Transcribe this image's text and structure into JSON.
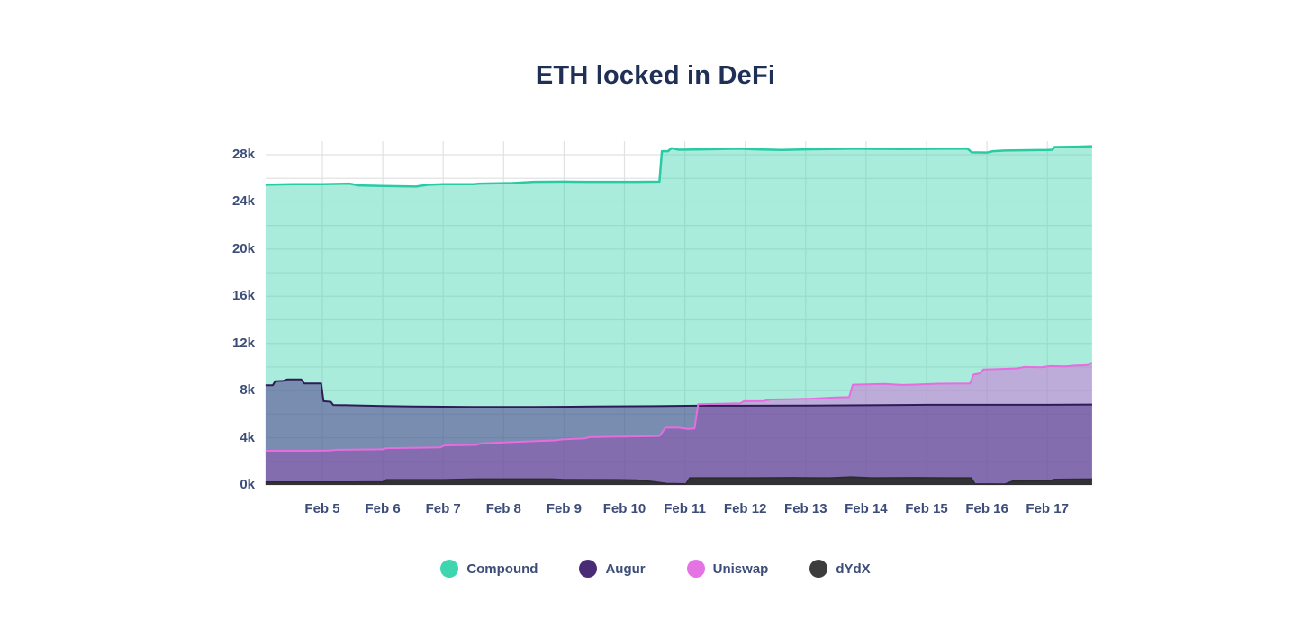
{
  "title": "ETH locked in DeFi",
  "colors": {
    "background": "#ffffff",
    "grid": "#e2e2e2",
    "title_text": "#1f2f55",
    "tick_text": "#3c4d79",
    "legend_text": "#3c4d79"
  },
  "chart_data": {
    "type": "area",
    "stacking": "overlap",
    "title": "ETH locked in DeFi",
    "xlabel": "",
    "ylabel": "",
    "y_unit": "thousands of ETH (k)",
    "x_unit": "day of February (t=5 means Feb 5)",
    "xlim": [
      4.06,
      17.74
    ],
    "ylim": [
      0,
      29.2
    ],
    "grid": true,
    "legend_position": "bottom",
    "yticks": [
      {
        "v": 0,
        "label": "0k"
      },
      {
        "v": 4,
        "label": "4k"
      },
      {
        "v": 8,
        "label": "8k"
      },
      {
        "v": 12,
        "label": "12k"
      },
      {
        "v": 16,
        "label": "16k"
      },
      {
        "v": 20,
        "label": "20k"
      },
      {
        "v": 24,
        "label": "24k"
      },
      {
        "v": 28,
        "label": "28k"
      }
    ],
    "grid_step_y": 2,
    "xticks": [
      {
        "t": 5,
        "label": "Feb 5"
      },
      {
        "t": 6,
        "label": "Feb 6"
      },
      {
        "t": 7,
        "label": "Feb 7"
      },
      {
        "t": 8,
        "label": "Feb 8"
      },
      {
        "t": 9,
        "label": "Feb 9"
      },
      {
        "t": 10,
        "label": "Feb 10"
      },
      {
        "t": 11,
        "label": "Feb 11"
      },
      {
        "t": 12,
        "label": "Feb 12"
      },
      {
        "t": 13,
        "label": "Feb 13"
      },
      {
        "t": 14,
        "label": "Feb 14"
      },
      {
        "t": 15,
        "label": "Feb 15"
      },
      {
        "t": 16,
        "label": "Feb 16"
      },
      {
        "t": 17,
        "label": "Feb 17"
      }
    ],
    "series": [
      {
        "name": "Compound",
        "legend_color": "#3dd6ae",
        "line_color": "#29cba5",
        "line_width": 2.5,
        "fill_color": "rgba(64,213,176,0.45)",
        "points": [
          [
            4.06,
            25.45
          ],
          [
            4.5,
            25.5
          ],
          [
            5.0,
            25.5
          ],
          [
            5.45,
            25.55
          ],
          [
            5.6,
            25.4
          ],
          [
            6.0,
            25.35
          ],
          [
            6.55,
            25.3
          ],
          [
            6.75,
            25.45
          ],
          [
            7.0,
            25.5
          ],
          [
            7.5,
            25.5
          ],
          [
            7.6,
            25.55
          ],
          [
            8.15,
            25.6
          ],
          [
            8.5,
            25.7
          ],
          [
            9.0,
            25.72
          ],
          [
            9.4,
            25.7
          ],
          [
            10.2,
            25.7
          ],
          [
            10.58,
            25.72
          ],
          [
            10.62,
            28.3
          ],
          [
            10.72,
            28.3
          ],
          [
            10.78,
            28.55
          ],
          [
            10.9,
            28.42
          ],
          [
            11.3,
            28.45
          ],
          [
            11.9,
            28.5
          ],
          [
            12.2,
            28.45
          ],
          [
            12.6,
            28.4
          ],
          [
            13.0,
            28.45
          ],
          [
            13.8,
            28.5
          ],
          [
            14.6,
            28.48
          ],
          [
            15.3,
            28.5
          ],
          [
            15.68,
            28.5
          ],
          [
            15.75,
            28.2
          ],
          [
            16.0,
            28.18
          ],
          [
            16.1,
            28.3
          ],
          [
            16.3,
            28.35
          ],
          [
            17.0,
            28.4
          ],
          [
            17.08,
            28.42
          ],
          [
            17.12,
            28.65
          ],
          [
            17.5,
            28.68
          ],
          [
            17.74,
            28.72
          ]
        ]
      },
      {
        "name": "Uniswap",
        "legend_color": "#e473e4",
        "line_color": "#e76ce0",
        "line_width": 2,
        "fill_color": "rgba(212,95,214,0.45)",
        "points": [
          [
            4.06,
            2.9
          ],
          [
            4.8,
            2.9
          ],
          [
            5.1,
            2.92
          ],
          [
            5.25,
            2.98
          ],
          [
            6.0,
            3.02
          ],
          [
            6.06,
            3.12
          ],
          [
            6.5,
            3.15
          ],
          [
            6.95,
            3.18
          ],
          [
            7.02,
            3.35
          ],
          [
            7.55,
            3.4
          ],
          [
            7.62,
            3.52
          ],
          [
            8.0,
            3.6
          ],
          [
            8.35,
            3.68
          ],
          [
            8.85,
            3.78
          ],
          [
            8.95,
            3.85
          ],
          [
            9.35,
            3.95
          ],
          [
            9.42,
            4.05
          ],
          [
            9.9,
            4.1
          ],
          [
            10.3,
            4.12
          ],
          [
            10.58,
            4.15
          ],
          [
            10.68,
            4.85
          ],
          [
            10.9,
            4.85
          ],
          [
            11.05,
            4.75
          ],
          [
            11.16,
            4.78
          ],
          [
            11.22,
            6.85
          ],
          [
            11.6,
            6.88
          ],
          [
            11.92,
            6.92
          ],
          [
            11.98,
            7.1
          ],
          [
            12.3,
            7.12
          ],
          [
            12.42,
            7.25
          ],
          [
            12.8,
            7.28
          ],
          [
            13.1,
            7.32
          ],
          [
            13.5,
            7.42
          ],
          [
            13.72,
            7.45
          ],
          [
            13.78,
            8.5
          ],
          [
            14.0,
            8.52
          ],
          [
            14.3,
            8.56
          ],
          [
            14.6,
            8.48
          ],
          [
            14.9,
            8.52
          ],
          [
            15.2,
            8.58
          ],
          [
            15.72,
            8.6
          ],
          [
            15.78,
            9.35
          ],
          [
            15.88,
            9.45
          ],
          [
            15.94,
            9.78
          ],
          [
            16.2,
            9.82
          ],
          [
            16.5,
            9.88
          ],
          [
            16.62,
            10.0
          ],
          [
            16.9,
            9.98
          ],
          [
            17.05,
            10.08
          ],
          [
            17.3,
            10.05
          ],
          [
            17.45,
            10.12
          ],
          [
            17.6,
            10.15
          ],
          [
            17.68,
            10.18
          ],
          [
            17.74,
            10.38
          ]
        ]
      },
      {
        "name": "Augur",
        "legend_color": "#4a2b76",
        "line_color": "#2e1c55",
        "line_width": 2,
        "fill_color": "rgba(74,46,133,0.50)",
        "points": [
          [
            4.06,
            8.45
          ],
          [
            4.18,
            8.45
          ],
          [
            4.22,
            8.8
          ],
          [
            4.35,
            8.82
          ],
          [
            4.42,
            8.95
          ],
          [
            4.65,
            8.95
          ],
          [
            4.7,
            8.6
          ],
          [
            4.98,
            8.6
          ],
          [
            5.02,
            7.1
          ],
          [
            5.14,
            7.05
          ],
          [
            5.18,
            6.78
          ],
          [
            5.5,
            6.75
          ],
          [
            6.0,
            6.7
          ],
          [
            6.5,
            6.65
          ],
          [
            7.5,
            6.62
          ],
          [
            8.5,
            6.62
          ],
          [
            9.5,
            6.65
          ],
          [
            10.5,
            6.68
          ],
          [
            11.2,
            6.72
          ],
          [
            12.0,
            6.72
          ],
          [
            13.0,
            6.73
          ],
          [
            14.0,
            6.76
          ],
          [
            15.0,
            6.8
          ],
          [
            16.0,
            6.8
          ],
          [
            17.0,
            6.8
          ],
          [
            17.74,
            6.82
          ]
        ]
      },
      {
        "name": "dYdX",
        "legend_color": "#3d3d3d",
        "line_color": "#2a2c2b",
        "line_width": 1.5,
        "fill_color": "rgba(42,44,43,0.92)",
        "points": [
          [
            4.06,
            0.25
          ],
          [
            5.5,
            0.25
          ],
          [
            6.0,
            0.27
          ],
          [
            6.06,
            0.45
          ],
          [
            7.0,
            0.45
          ],
          [
            7.55,
            0.5
          ],
          [
            8.8,
            0.5
          ],
          [
            9.0,
            0.46
          ],
          [
            9.9,
            0.45
          ],
          [
            10.2,
            0.42
          ],
          [
            10.45,
            0.3
          ],
          [
            10.7,
            0.12
          ],
          [
            11.02,
            0.1
          ],
          [
            11.08,
            0.6
          ],
          [
            12.0,
            0.6
          ],
          [
            12.8,
            0.62
          ],
          [
            13.4,
            0.6
          ],
          [
            13.75,
            0.68
          ],
          [
            14.1,
            0.6
          ],
          [
            14.8,
            0.62
          ],
          [
            15.4,
            0.6
          ],
          [
            15.74,
            0.6
          ],
          [
            15.8,
            0.1
          ],
          [
            16.3,
            0.08
          ],
          [
            16.42,
            0.32
          ],
          [
            16.9,
            0.35
          ],
          [
            17.05,
            0.38
          ],
          [
            17.12,
            0.48
          ],
          [
            17.74,
            0.5
          ]
        ]
      }
    ],
    "fill_draw_order": [
      "Compound",
      "Uniswap",
      "Augur",
      "dYdX"
    ],
    "line_draw_order": [
      "Compound",
      "Augur",
      "Uniswap",
      "dYdX"
    ],
    "legend_order": [
      "Compound",
      "Augur",
      "Uniswap",
      "dYdX"
    ]
  }
}
